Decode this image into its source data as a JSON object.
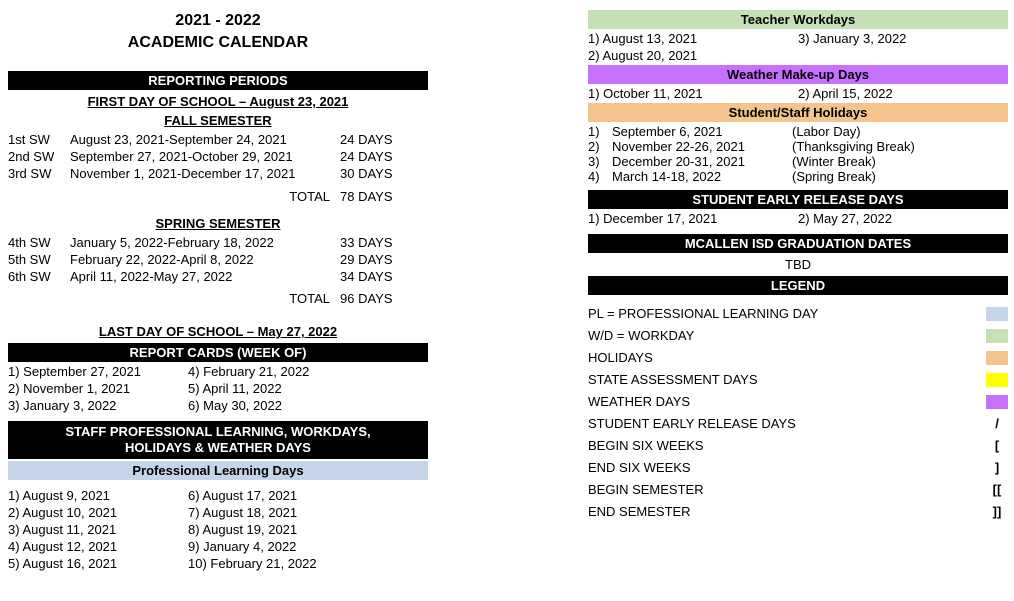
{
  "title": {
    "line1": "2021 - 2022",
    "line2": "ACADEMIC CALENDAR"
  },
  "left": {
    "reporting_heading": "REPORTING PERIODS",
    "first_day": "FIRST DAY OF SCHOOL – August 23, 2021",
    "fall_label": "FALL SEMESTER",
    "fall": [
      {
        "sw": "1st SW",
        "range": "August 23, 2021-September 24, 2021",
        "days": "24 DAYS"
      },
      {
        "sw": "2nd SW",
        "range": "September 27, 2021-October 29, 2021",
        "days": "24 DAYS"
      },
      {
        "sw": "3rd SW",
        "range": "November 1, 2021-December 17, 2021",
        "days": "30 DAYS"
      }
    ],
    "fall_total_label": "TOTAL",
    "fall_total_value": "78 DAYS",
    "spring_label": "SPRING SEMESTER",
    "spring": [
      {
        "sw": "4th SW",
        "range": "January 5, 2022-February 18, 2022",
        "days": "33 DAYS"
      },
      {
        "sw": "5th SW",
        "range": "February 22, 2022-April 8, 2022",
        "days": "29 DAYS"
      },
      {
        "sw": "6th SW",
        "range": "April 11, 2022-May 27, 2022",
        "days": "34 DAYS"
      }
    ],
    "spring_total_label": "TOTAL",
    "spring_total_value": "96 DAYS",
    "last_day": "LAST DAY OF SCHOOL – May 27, 2022",
    "report_cards_heading": "REPORT CARDS (WEEK OF)",
    "report_cards": [
      {
        "a": "1) September 27, 2021",
        "b": "4) February 21, 2022"
      },
      {
        "a": "2) November 1, 2021",
        "b": "5) April 11, 2022"
      },
      {
        "a": "3) January 3, 2022",
        "b": "6) May 30, 2022"
      }
    ],
    "staff_heading_l1": "STAFF PROFESSIONAL LEARNING, WORKDAYS,",
    "staff_heading_l2": "HOLIDAYS &  WEATHER DAYS",
    "pl_heading": "Professional Learning Days",
    "pl_days": [
      {
        "a": "1) August 9, 2021",
        "b": "6) August 17, 2021"
      },
      {
        "a": "2) August 10, 2021",
        "b": "7) August 18, 2021"
      },
      {
        "a": "3) August 11, 2021",
        "b": "8) August 19, 2021"
      },
      {
        "a": "4) August 12, 2021",
        "b": "9) January 4, 2022"
      },
      {
        "a": "5) August 16, 2021",
        "b": "10) February 21, 2022"
      }
    ]
  },
  "right": {
    "teacher_heading": "Teacher Workdays",
    "teacher": [
      {
        "a": "1) August 13, 2021",
        "b": "3) January 3, 2022"
      },
      {
        "a": "2) August 20, 2021",
        "b": ""
      }
    ],
    "weather_heading": "Weather Make-up Days",
    "weather": [
      {
        "a": "1) October 11, 2021",
        "b": "2) April 15, 2022"
      }
    ],
    "holidays_heading": "Student/Staff Holidays",
    "holidays": [
      {
        "n": "1)",
        "d": "September 6, 2021",
        "name": "(Labor Day)"
      },
      {
        "n": "2)",
        "d": "November 22-26, 2021",
        "name": "(Thanksgiving Break)"
      },
      {
        "n": "3)",
        "d": "December 20-31, 2021",
        "name": "(Winter Break)"
      },
      {
        "n": "4)",
        "d": "March 14-18, 2022",
        "name": "(Spring Break)"
      }
    ],
    "early_heading": "STUDENT EARLY RELEASE DAYS",
    "early": [
      {
        "a": "1) December 17, 2021",
        "b": "2)  May 27, 2022"
      }
    ],
    "grad_heading": "MCALLEN ISD GRADUATION DATES",
    "grad_value": "TBD",
    "legend_heading": "LEGEND",
    "legend": [
      {
        "label": "PL = PROFESSIONAL LEARNING DAY",
        "type": "swatch",
        "class": "sw-blue"
      },
      {
        "label": "W/D = WORKDAY",
        "type": "swatch",
        "class": "sw-green"
      },
      {
        "label": "HOLIDAYS",
        "type": "swatch",
        "class": "sw-tan"
      },
      {
        "label": "STATE ASSESSMENT DAYS",
        "type": "swatch",
        "class": "sw-yellow"
      },
      {
        "label": "WEATHER DAYS",
        "type": "swatch",
        "class": "sw-purple"
      },
      {
        "label": "STUDENT EARLY RELEASE DAYS",
        "type": "sym",
        "sym": "/"
      },
      {
        "label": "BEGIN SIX WEEKS",
        "type": "sym",
        "sym": "["
      },
      {
        "label": "END SIX WEEKS",
        "type": "sym",
        "sym": "]"
      },
      {
        "label": "BEGIN SEMESTER",
        "type": "sym",
        "sym": "[["
      },
      {
        "label": "END SEMESTER",
        "type": "sym",
        "sym": "]]"
      }
    ]
  },
  "colors": {
    "black": "#000000",
    "white": "#ffffff",
    "blue": "#c4d5e9",
    "green": "#c5e0b4",
    "tan": "#f4c48c",
    "purple": "#c870ff",
    "yellow": "#ffff00"
  }
}
